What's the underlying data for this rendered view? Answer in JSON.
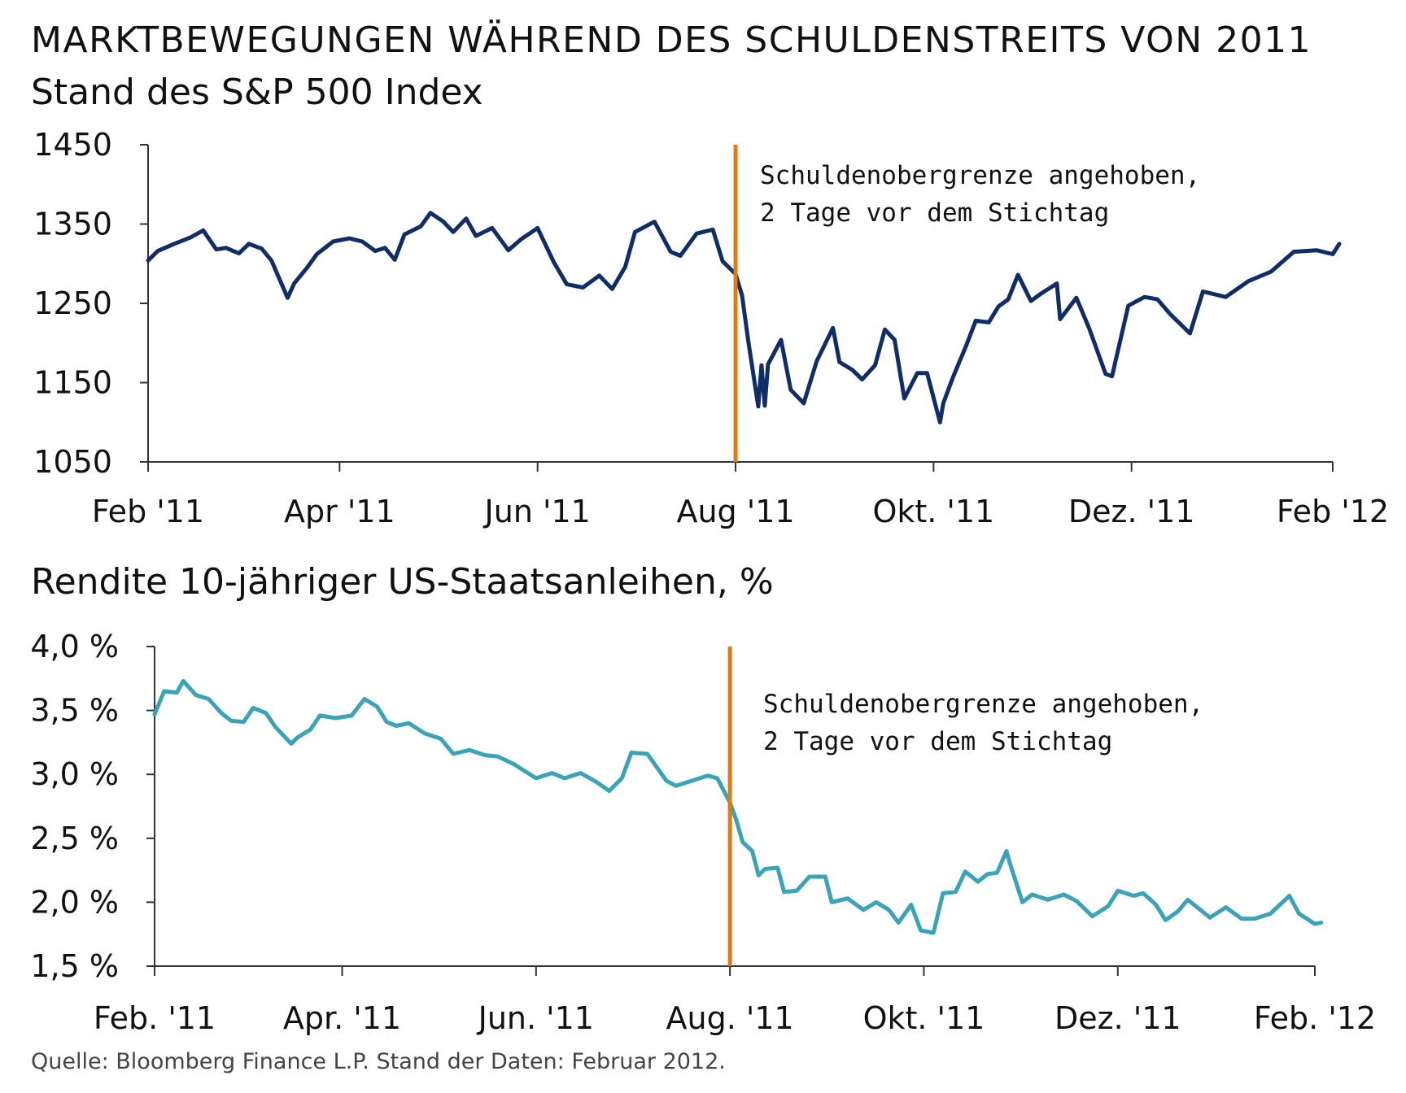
{
  "title": "MARKTBEWEGUNGEN WÄHREND DES SCHULDENSTREITS VON 2011",
  "source": "Quelle: Bloomberg Finance L.P. Stand der Daten: Februar 2012.",
  "colors": {
    "sp500_line": "#0f2d66",
    "yield_line": "#3aa3b8",
    "marker": "#e07b10",
    "axis": "#333333"
  },
  "chart_data": [
    {
      "type": "line",
      "title": "Stand des S&P 500 Index",
      "xlabel": "",
      "ylabel": "",
      "ylim": [
        1050,
        1450
      ],
      "yticks": [
        "1450",
        "1350",
        "1250",
        "1150",
        "1050"
      ],
      "ytick_values": [
        1450,
        1350,
        1250,
        1150,
        1050
      ],
      "xticks": [
        "Feb '11",
        "Apr '11",
        "Jun '11",
        "Aug '11",
        "Okt. '11",
        "Dez. '11",
        "Feb '12"
      ],
      "xtick_values": [
        "2011-02-01",
        "2011-04-01",
        "2011-06-01",
        "2011-08-01",
        "2011-10-01",
        "2011-12-01",
        "2012-02-01"
      ],
      "marker_date": "2011-08-01",
      "annotation": [
        "Schuldenobergrenze angehoben,",
        "2 Tage vor dem Stichtag"
      ],
      "grid": false,
      "series": [
        {
          "x": [
            "2011-02-01",
            "2011-02-04",
            "2011-02-09",
            "2011-02-14",
            "2011-02-18",
            "2011-02-22",
            "2011-02-25",
            "2011-03-01",
            "2011-03-04",
            "2011-03-08",
            "2011-03-11",
            "2011-03-16",
            "2011-03-18",
            "2011-03-22",
            "2011-03-25",
            "2011-03-30",
            "2011-04-04",
            "2011-04-08",
            "2011-04-12",
            "2011-04-15",
            "2011-04-18",
            "2011-04-21",
            "2011-04-26",
            "2011-04-29",
            "2011-05-03",
            "2011-05-06",
            "2011-05-10",
            "2011-05-13",
            "2011-05-18",
            "2011-05-23",
            "2011-05-27",
            "2011-06-01",
            "2011-06-06",
            "2011-06-10",
            "2011-06-15",
            "2011-06-20",
            "2011-06-24",
            "2011-06-28",
            "2011-07-01",
            "2011-07-07",
            "2011-07-12",
            "2011-07-15",
            "2011-07-20",
            "2011-07-25",
            "2011-07-28",
            "2011-08-01",
            "2011-08-03",
            "2011-08-05",
            "2011-08-08",
            "2011-08-09",
            "2011-08-10",
            "2011-08-11",
            "2011-08-15",
            "2011-08-18",
            "2011-08-22",
            "2011-08-26",
            "2011-08-31",
            "2011-09-02",
            "2011-09-06",
            "2011-09-09",
            "2011-09-13",
            "2011-09-16",
            "2011-09-19",
            "2011-09-22",
            "2011-09-26",
            "2011-09-29",
            "2011-10-03",
            "2011-10-04",
            "2011-10-07",
            "2011-10-11",
            "2011-10-14",
            "2011-10-18",
            "2011-10-21",
            "2011-10-24",
            "2011-10-27",
            "2011-10-31",
            "2011-11-03",
            "2011-11-08",
            "2011-11-09",
            "2011-11-14",
            "2011-11-18",
            "2011-11-23",
            "2011-11-25",
            "2011-11-30",
            "2011-12-05",
            "2011-12-09",
            "2011-12-13",
            "2011-12-19",
            "2011-12-23",
            "2011-12-30",
            "2012-01-06",
            "2012-01-13",
            "2012-01-20",
            "2012-01-27",
            "2012-02-01",
            "2012-02-03"
          ],
          "values": [
            1304,
            1316,
            1325,
            1333,
            1342,
            1318,
            1320,
            1313,
            1325,
            1319,
            1304,
            1257,
            1275,
            1295,
            1312,
            1328,
            1332,
            1328,
            1316,
            1320,
            1305,
            1337,
            1347,
            1364,
            1353,
            1340,
            1357,
            1335,
            1345,
            1317,
            1331,
            1345,
            1302,
            1274,
            1270,
            1285,
            1268,
            1296,
            1340,
            1353,
            1315,
            1310,
            1338,
            1343,
            1303,
            1287,
            1260,
            1200,
            1120,
            1172,
            1121,
            1173,
            1204,
            1141,
            1124,
            1177,
            1219,
            1176,
            1166,
            1154,
            1172,
            1217,
            1204,
            1130,
            1162,
            1162,
            1100,
            1124,
            1157,
            1196,
            1228,
            1226,
            1246,
            1255,
            1286,
            1253,
            1262,
            1275,
            1230,
            1257,
            1218,
            1161,
            1158,
            1247,
            1258,
            1255,
            1236,
            1212,
            1265,
            1258,
            1278,
            1290,
            1315,
            1317,
            1312,
            1325
          ]
        }
      ]
    },
    {
      "type": "line",
      "title": "Rendite 10-jähriger US-Staatsanleihen, %",
      "xlabel": "",
      "ylabel": "",
      "ylim": [
        1.5,
        4.0
      ],
      "yticks": [
        "4,0 %",
        "3,5 %",
        "3,0 %",
        "2,5 %",
        "2,0 %",
        "1,5 %"
      ],
      "ytick_values": [
        4.0,
        3.5,
        3.0,
        2.5,
        2.0,
        1.5
      ],
      "xticks": [
        "Feb. '11",
        "Apr. '11",
        "Jun. '11",
        "Aug. '11",
        "Okt. '11",
        "Dez. '11",
        "Feb. '12"
      ],
      "xtick_values": [
        "2011-02-01",
        "2011-04-01",
        "2011-06-01",
        "2011-08-01",
        "2011-10-01",
        "2011-12-01",
        "2012-02-01"
      ],
      "marker_date": "2011-08-01",
      "annotation": [
        "Schuldenobergrenze angehoben,",
        "2 Tage vor dem Stichtag"
      ],
      "grid": false,
      "series": [
        {
          "x": [
            "2011-02-01",
            "2011-02-04",
            "2011-02-08",
            "2011-02-10",
            "2011-02-14",
            "2011-02-18",
            "2011-02-22",
            "2011-02-25",
            "2011-03-01",
            "2011-03-04",
            "2011-03-08",
            "2011-03-11",
            "2011-03-16",
            "2011-03-18",
            "2011-03-22",
            "2011-03-25",
            "2011-03-30",
            "2011-04-04",
            "2011-04-08",
            "2011-04-12",
            "2011-04-15",
            "2011-04-18",
            "2011-04-22",
            "2011-04-27",
            "2011-05-02",
            "2011-05-06",
            "2011-05-11",
            "2011-05-16",
            "2011-05-20",
            "2011-05-25",
            "2011-06-01",
            "2011-06-06",
            "2011-06-10",
            "2011-06-15",
            "2011-06-20",
            "2011-06-24",
            "2011-06-28",
            "2011-07-01",
            "2011-07-06",
            "2011-07-12",
            "2011-07-15",
            "2011-07-20",
            "2011-07-25",
            "2011-07-28",
            "2011-08-01",
            "2011-08-03",
            "2011-08-05",
            "2011-08-08",
            "2011-08-10",
            "2011-08-12",
            "2011-08-16",
            "2011-08-18",
            "2011-08-22",
            "2011-08-26",
            "2011-08-31",
            "2011-09-02",
            "2011-09-07",
            "2011-09-12",
            "2011-09-16",
            "2011-09-20",
            "2011-09-23",
            "2011-09-27",
            "2011-09-30",
            "2011-10-04",
            "2011-10-07",
            "2011-10-11",
            "2011-10-14",
            "2011-10-18",
            "2011-10-21",
            "2011-10-24",
            "2011-10-27",
            "2011-10-28",
            "2011-11-01",
            "2011-11-04",
            "2011-11-09",
            "2011-11-14",
            "2011-11-18",
            "2011-11-23",
            "2011-11-28",
            "2011-12-01",
            "2011-12-06",
            "2011-12-09",
            "2011-12-13",
            "2011-12-16",
            "2011-12-20",
            "2011-12-23",
            "2011-12-30",
            "2012-01-04",
            "2012-01-09",
            "2012-01-13",
            "2012-01-18",
            "2012-01-24",
            "2012-01-27",
            "2012-02-01",
            "2012-02-03"
          ],
          "values": [
            3.47,
            3.65,
            3.64,
            3.73,
            3.62,
            3.59,
            3.48,
            3.42,
            3.41,
            3.52,
            3.48,
            3.37,
            3.24,
            3.29,
            3.35,
            3.46,
            3.44,
            3.46,
            3.59,
            3.53,
            3.41,
            3.38,
            3.4,
            3.32,
            3.28,
            3.16,
            3.19,
            3.15,
            3.14,
            3.08,
            2.97,
            3.01,
            2.97,
            3.01,
            2.94,
            2.87,
            2.97,
            3.17,
            3.16,
            2.95,
            2.91,
            2.95,
            2.99,
            2.97,
            2.78,
            2.64,
            2.47,
            2.4,
            2.21,
            2.26,
            2.27,
            2.08,
            2.09,
            2.2,
            2.2,
            2.0,
            2.03,
            1.94,
            2.0,
            1.94,
            1.84,
            1.98,
            1.78,
            1.76,
            2.07,
            2.08,
            2.24,
            2.16,
            2.22,
            2.23,
            2.4,
            2.31,
            2.0,
            2.06,
            2.02,
            2.06,
            2.01,
            1.89,
            1.97,
            2.09,
            2.05,
            2.07,
            1.98,
            1.86,
            1.93,
            2.02,
            1.88,
            1.96,
            1.87,
            1.87,
            1.91,
            2.05,
            1.91,
            1.83,
            1.84
          ]
        }
      ]
    }
  ]
}
